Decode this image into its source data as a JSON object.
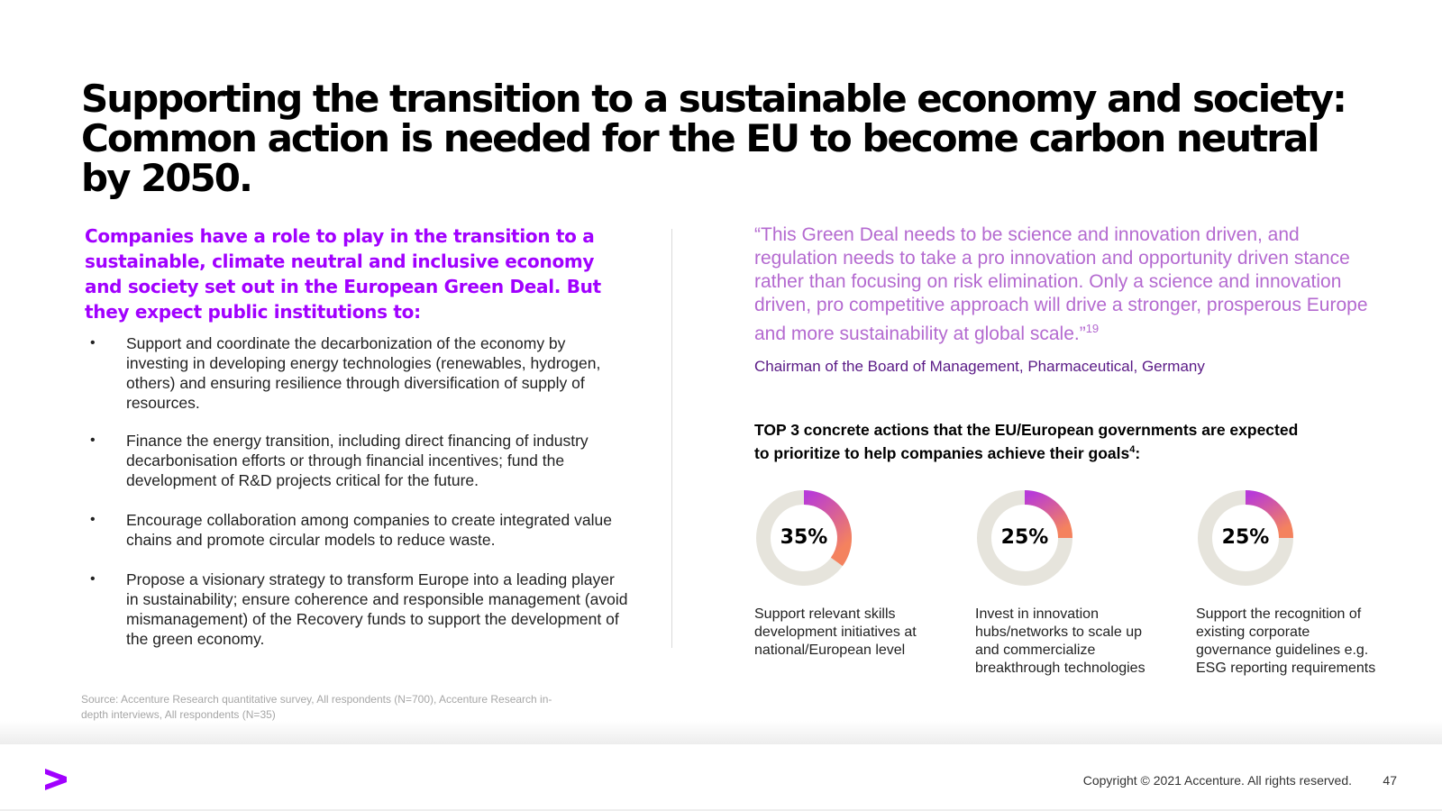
{
  "title": {
    "line1": "Supporting the transition to a sustainable economy and society:",
    "line2": "Common action is needed for the EU to become carbon neutral",
    "line3": "by 2050."
  },
  "lead": "Companies have a role to play in the transition to a sustainable, climate neutral and inclusive economy and society set out in the European Green Deal. But they expect public institutions to:",
  "bullets": [
    "Support and coordinate the decarbonization of the economy by investing in developing energy technologies (renewables, hydrogen, others) and ensuring resilience through diversification of supply of resources.",
    "Finance the energy transition, including direct financing of industry decarbonisation efforts or through financial incentives; fund the development of R&D projects critical for the future.",
    "Encourage collaboration among companies to create integrated value chains and promote circular models to reduce waste.",
    "Propose a visionary strategy to transform Europe into a leading player in sustainability; ensure coherence and responsible management (avoid mismanagement) of the Recovery funds to support the development of the green economy."
  ],
  "bullet_symbol": "•",
  "quote": {
    "text": "“This Green Deal needs to be science and innovation driven, and regulation needs to take a pro innovation and opportunity driven stance rather than focusing on risk elimination. Only a science and innovation driven, pro competitive approach will drive a stronger, prosperous Europe and more sustainability at global scale.”",
    "footnote": "19",
    "attribution": "Chairman of the Board of Management, Pharmaceutical, Germany"
  },
  "actions": {
    "title_part1": "TOP 3 concrete actions that the EU/European governments are expected to  prioritize to help companies achieve their goals",
    "title_footnote": "4",
    "title_end": ":"
  },
  "chart_data": {
    "type": "pie",
    "title": "",
    "items": [
      {
        "label": "Support relevant skills development initiatives at national/European level",
        "value": 35,
        "display": "35%"
      },
      {
        "label": "Invest in innovation hubs/networks to scale up and commercialize breakthrough technologies",
        "value": 25,
        "display": "25%"
      },
      {
        "label": "Support the recognition of existing corporate governance guidelines e.g. ESG reporting requirements",
        "value": 25,
        "display": "25%"
      }
    ]
  },
  "colors": {
    "accent_purple": "#a100ff",
    "quote_purple": "#b46ad0",
    "donut_track": "#e6e4dc",
    "donut_gradient_start": "#b83ad8",
    "donut_gradient_end": "#f4825e"
  },
  "source": "Source: Accenture Research quantitative survey, All respondents (N=700), Accenture Research in-depth interviews, All respondents (N=35)",
  "footer": {
    "logo_icon": "accenture-greater-than-icon",
    "copyright": "Copyright © 2021 Accenture. All rights reserved.",
    "page_number": "47"
  }
}
